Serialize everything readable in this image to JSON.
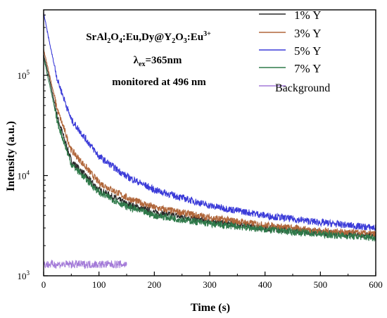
{
  "chart_data": {
    "type": "line",
    "xlabel": "Time (s)",
    "ylabel": "Intensity (a.u.)",
    "xlim": [
      0,
      600
    ],
    "ylim": [
      1000,
      450000
    ],
    "yscale": "log",
    "xticks": [
      "0",
      "100",
      "200",
      "300",
      "400",
      "500",
      "600"
    ],
    "yticks": [
      {
        "value": 1000,
        "base": "10",
        "exp": "3"
      },
      {
        "value": 10000,
        "base": "10",
        "exp": "4"
      },
      {
        "value": 100000,
        "base": "10",
        "exp": "5"
      }
    ],
    "grid": false,
    "legend_position": "top-right",
    "annotation": {
      "line1": {
        "a": "SrAl",
        "a_sub": "2",
        "b": "O",
        "b_sub": "4",
        "c": ":Eu,Dy@Y",
        "c_sub": "2",
        "d": "O",
        "d_sub": "3",
        "e": ":Eu",
        "e_sup": "3+"
      },
      "line2": {
        "a": "λ",
        "a_sub": "ex",
        "b": "=365nm"
      },
      "line3": "monitored at 496 nm"
    },
    "series": [
      {
        "name": "1% Y",
        "color": "#2a2a2a",
        "x": [
          0,
          10,
          25,
          50,
          100,
          150,
          200,
          300,
          400,
          500,
          600
        ],
        "y": [
          160000,
          95000,
          38000,
          14000,
          7200,
          5200,
          4300,
          3500,
          3000,
          2700,
          2500
        ]
      },
      {
        "name": "3% Y",
        "color": "#b0663a",
        "x": [
          0,
          10,
          25,
          50,
          100,
          150,
          200,
          300,
          400,
          500,
          600
        ],
        "y": [
          180000,
          105000,
          45000,
          18000,
          8500,
          6000,
          4800,
          3800,
          3200,
          2800,
          2600
        ]
      },
      {
        "name": "5% Y",
        "color": "#3b3bd8",
        "x": [
          0,
          10,
          25,
          50,
          100,
          150,
          200,
          300,
          400,
          500,
          600
        ],
        "y": [
          420000,
          220000,
          90000,
          36000,
          15500,
          9800,
          7200,
          5000,
          4000,
          3400,
          3000
        ]
      },
      {
        "name": "7% Y",
        "color": "#2f7a4a",
        "x": [
          0,
          10,
          25,
          50,
          100,
          150,
          200,
          300,
          400,
          500,
          600
        ],
        "y": [
          150000,
          85000,
          34000,
          13000,
          6800,
          4900,
          4000,
          3300,
          2900,
          2600,
          2400
        ]
      },
      {
        "name": "Background",
        "color": "#a37ad8",
        "x": [
          0,
          150
        ],
        "y": [
          1300,
          1300
        ]
      }
    ]
  }
}
